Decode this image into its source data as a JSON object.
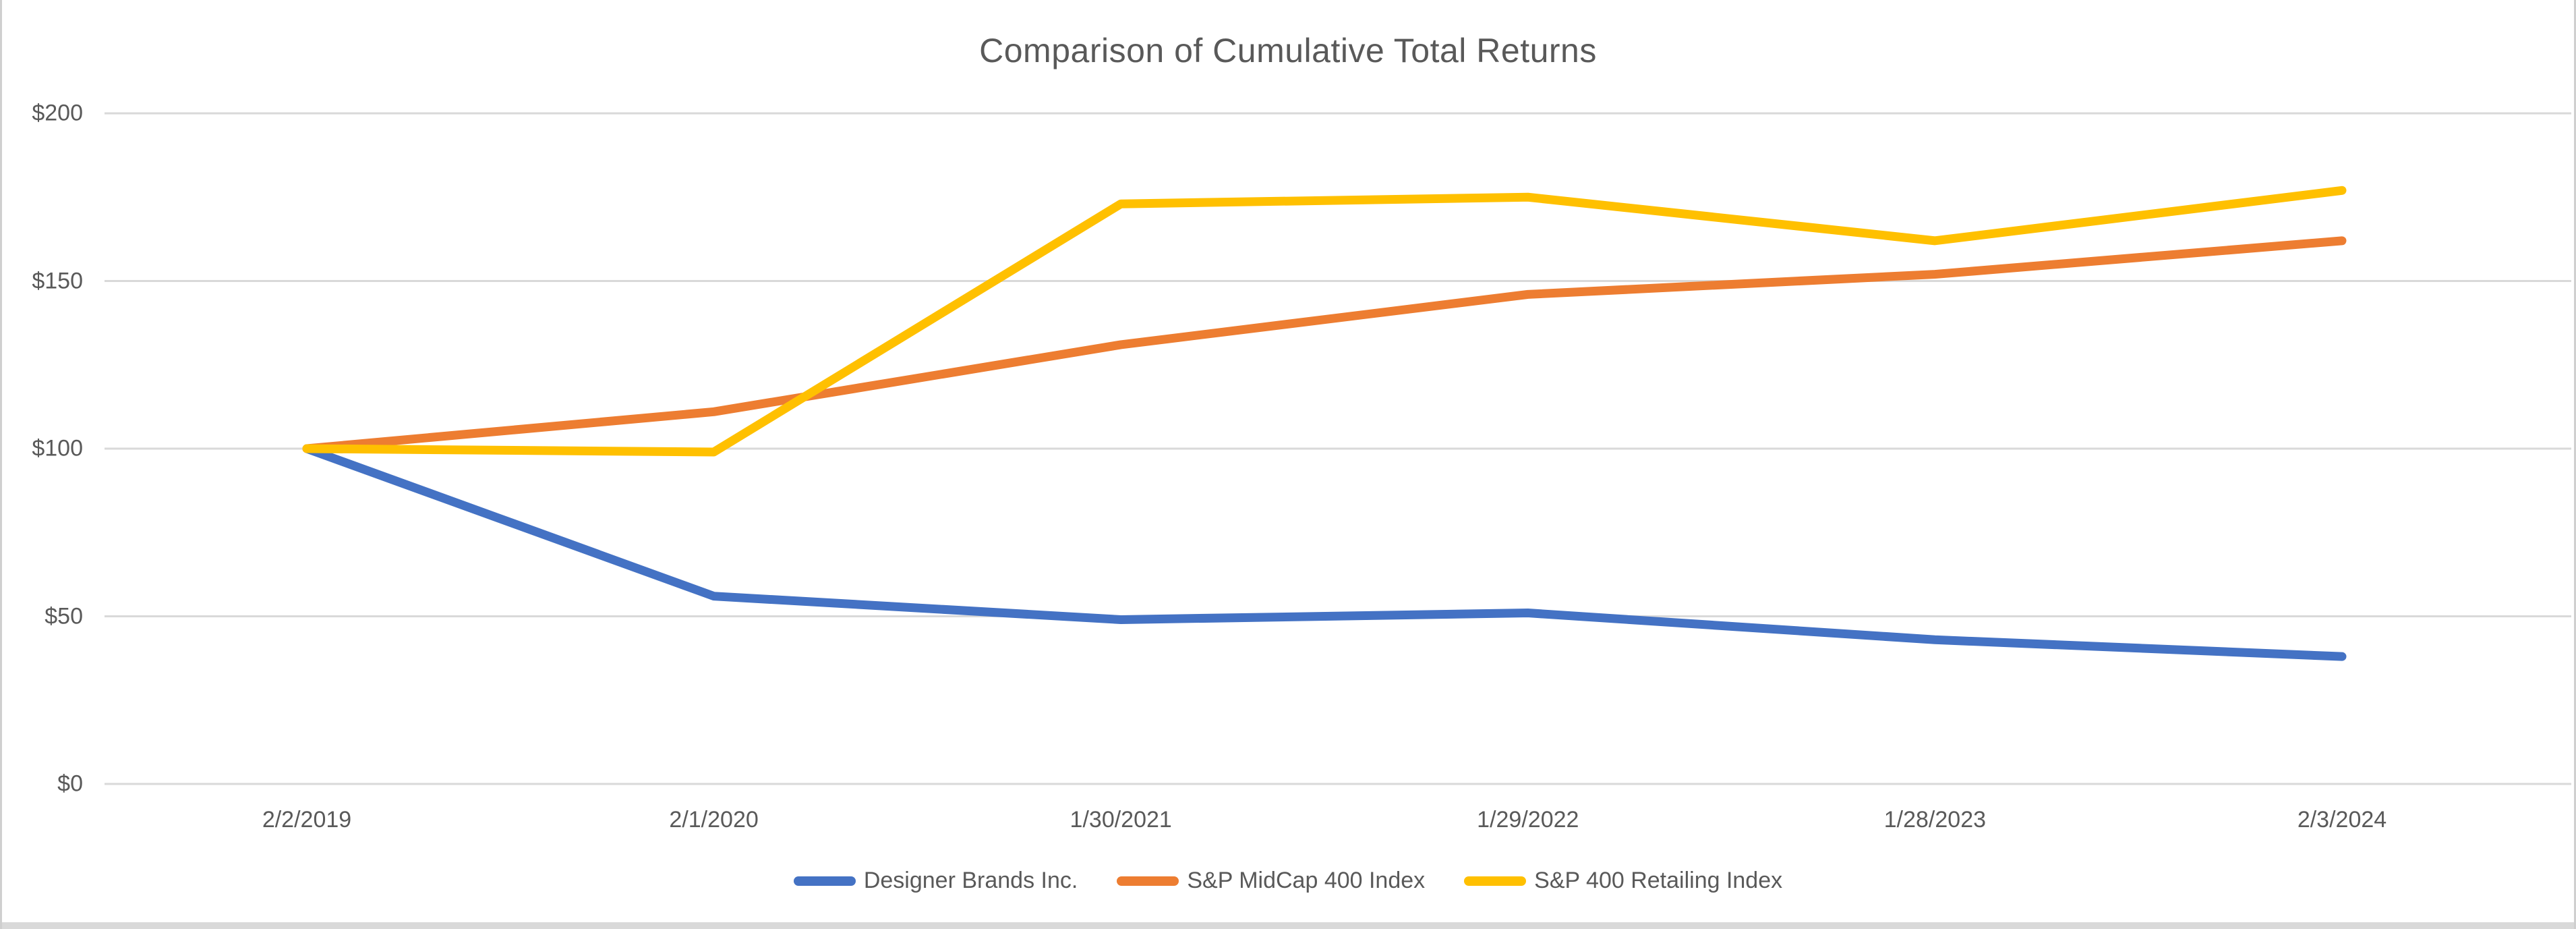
{
  "chart_data": {
    "type": "line",
    "title": "Comparison of Cumulative Total Returns",
    "x": [
      "2/2/2019",
      "2/1/2020",
      "1/30/2021",
      "1/29/2022",
      "1/28/2023",
      "2/3/2024"
    ],
    "y_ticks": [
      "$0",
      "$50",
      "$100",
      "$150",
      "$200"
    ],
    "ylim": [
      0,
      200
    ],
    "grid": "horizontal",
    "legend_position": "bottom",
    "series": [
      {
        "name": "Designer Brands Inc.",
        "color": "#4472C4",
        "values": [
          100,
          56,
          49,
          51,
          43,
          38
        ]
      },
      {
        "name": "S&P MidCap 400 Index",
        "color": "#ED7D31",
        "values": [
          100,
          111,
          131,
          146,
          152,
          162
        ]
      },
      {
        "name": "S&P 400 Retailing Index",
        "color": "#FFC000",
        "values": [
          100,
          99,
          173,
          175,
          162,
          177
        ]
      }
    ]
  },
  "colors": {
    "title_text": "#595959",
    "axis_text": "#595959",
    "gridline": "#D9D9D9",
    "page_edge": "#D9D9D9"
  }
}
